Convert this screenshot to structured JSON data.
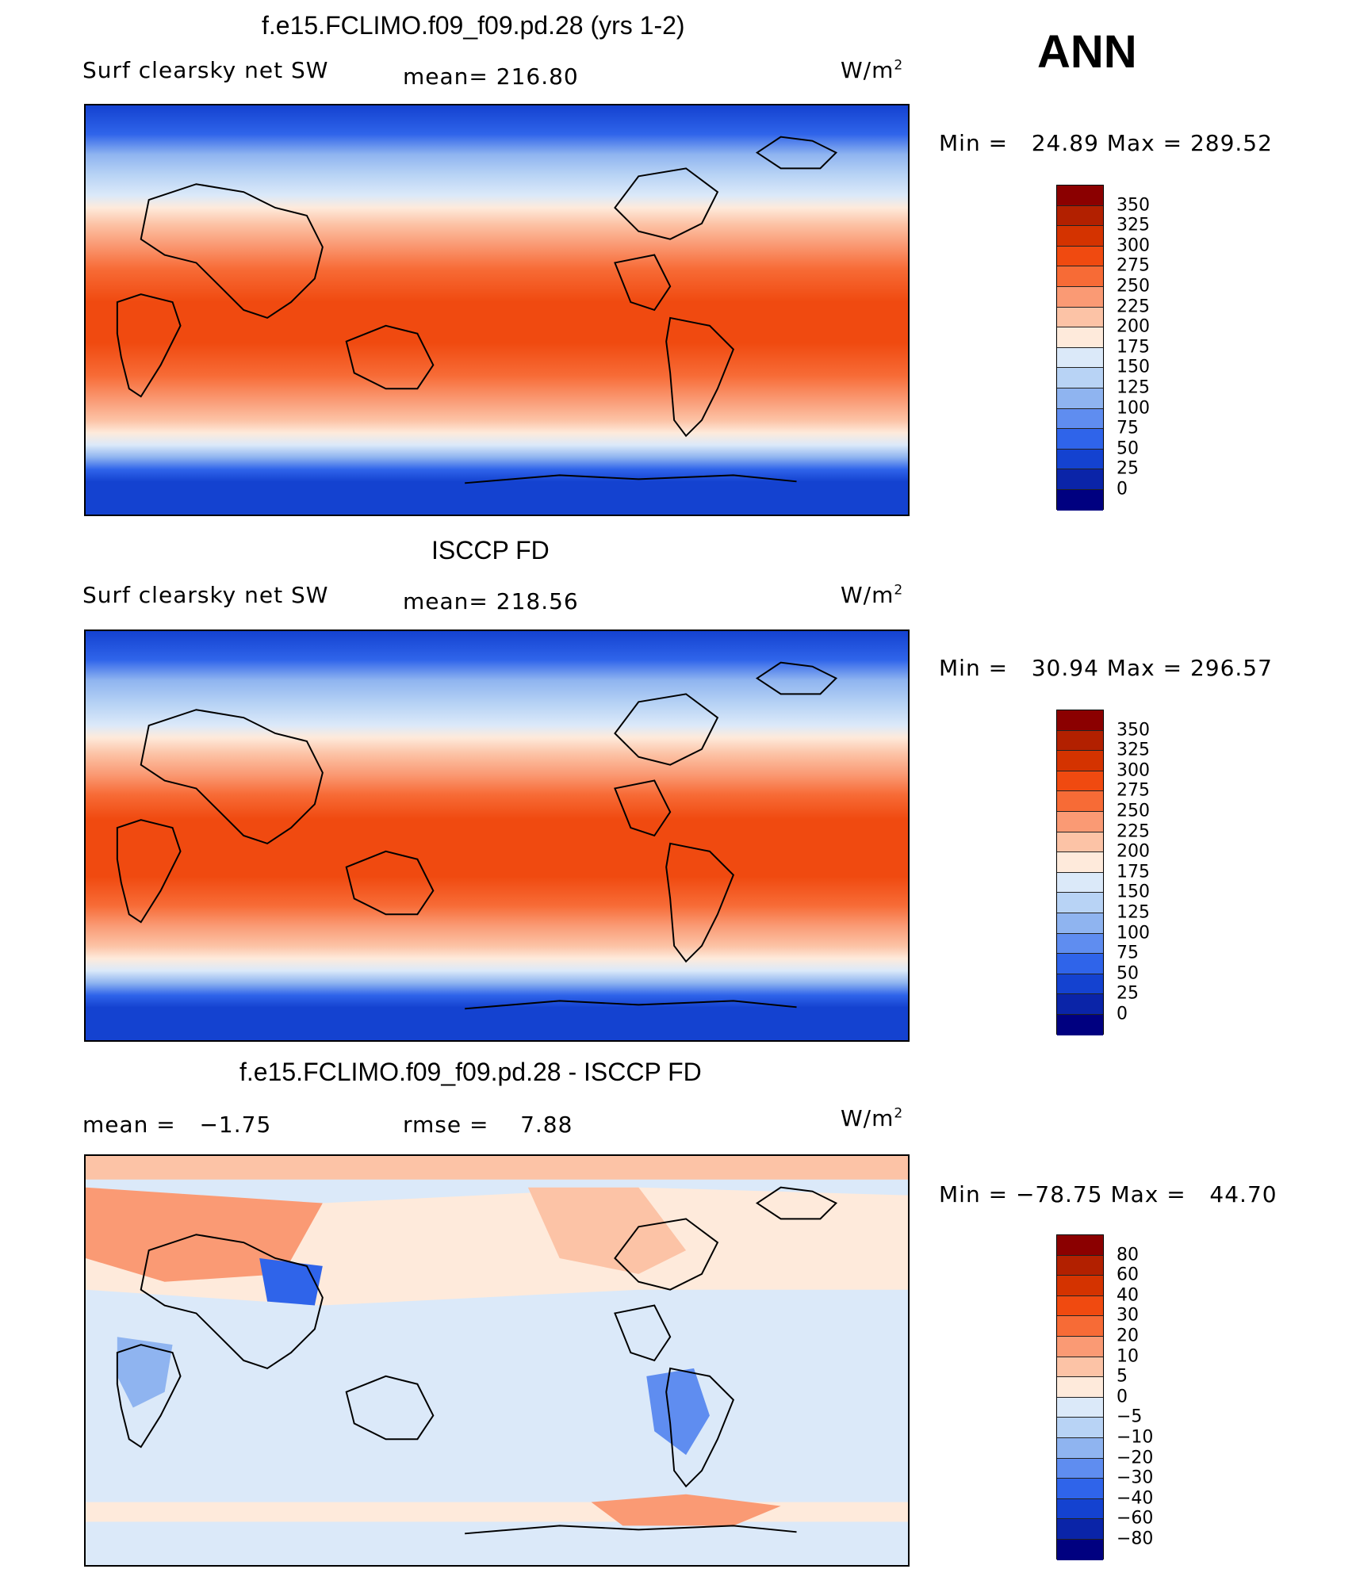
{
  "header": {
    "season": "ANN"
  },
  "panels": [
    {
      "title": "f.e15.FCLIMO.f09_f09.pd.28 (yrs 1-2)",
      "left_label": "Surf clearsky net SW",
      "center_label": "mean= 216.80",
      "units": "W/m",
      "units_sup": "2",
      "min_max": "Min =   24.89 Max = 289.52"
    },
    {
      "title": "ISCCP FD",
      "left_label": "Surf clearsky net SW",
      "center_label": "mean= 218.56",
      "units": "W/m",
      "units_sup": "2",
      "min_max": "Min =   30.94 Max = 296.57"
    },
    {
      "title": "f.e15.FCLIMO.f09_f09.pd.28 - ISCCP FD",
      "left_label": "mean =   −1.75",
      "center_label": "rmse =    7.88",
      "units": "W/m",
      "units_sup": "2",
      "min_max": "Min = −78.75 Max =   44.70"
    }
  ],
  "chart_data": [
    {
      "type": "heatmap",
      "title": "f.e15.FCLIMO.f09_f09.pd.28 (yrs 1-2)",
      "variable": "Surf clearsky net SW",
      "units": "W/m2",
      "mean": 216.8,
      "min": 24.89,
      "max": 289.52,
      "levels": [
        350,
        325,
        300,
        275,
        250,
        225,
        200,
        175,
        150,
        125,
        100,
        75,
        50,
        25,
        0
      ],
      "colors": [
        "#8b0000",
        "#b22000",
        "#d43300",
        "#f04a10",
        "#f76b36",
        "#fa9a74",
        "#fcc3a6",
        "#feeadb",
        "#dbe9f9",
        "#b8d3f5",
        "#8fb4f0",
        "#5f8df0",
        "#2f64ea",
        "#1442d0",
        "#0a24a8",
        "#000080"
      ]
    },
    {
      "type": "heatmap",
      "title": "ISCCP FD",
      "variable": "Surf clearsky net SW",
      "units": "W/m2",
      "mean": 218.56,
      "min": 30.94,
      "max": 296.57,
      "levels": [
        350,
        325,
        300,
        275,
        250,
        225,
        200,
        175,
        150,
        125,
        100,
        75,
        50,
        25,
        0
      ],
      "colors": [
        "#8b0000",
        "#b22000",
        "#d43300",
        "#f04a10",
        "#f76b36",
        "#fa9a74",
        "#fcc3a6",
        "#feeadb",
        "#dbe9f9",
        "#b8d3f5",
        "#8fb4f0",
        "#5f8df0",
        "#2f64ea",
        "#1442d0",
        "#0a24a8",
        "#000080"
      ]
    },
    {
      "type": "heatmap",
      "title": "f.e15.FCLIMO.f09_f09.pd.28 - ISCCP FD",
      "units": "W/m2",
      "mean": -1.75,
      "rmse": 7.88,
      "min": -78.75,
      "max": 44.7,
      "levels": [
        "80",
        "60",
        "40",
        "30",
        "20",
        "10",
        "5",
        "0",
        "−5",
        "−10",
        "−20",
        "−30",
        "−40",
        "−60",
        "−80"
      ],
      "colors": [
        "#8b0000",
        "#b22000",
        "#d43300",
        "#f04a10",
        "#f76b36",
        "#fa9a74",
        "#fcc3a6",
        "#feeadb",
        "#dbe9f9",
        "#b8d3f5",
        "#8fb4f0",
        "#5f8df0",
        "#2f64ea",
        "#1442d0",
        "#0a24a8",
        "#000080"
      ]
    }
  ]
}
